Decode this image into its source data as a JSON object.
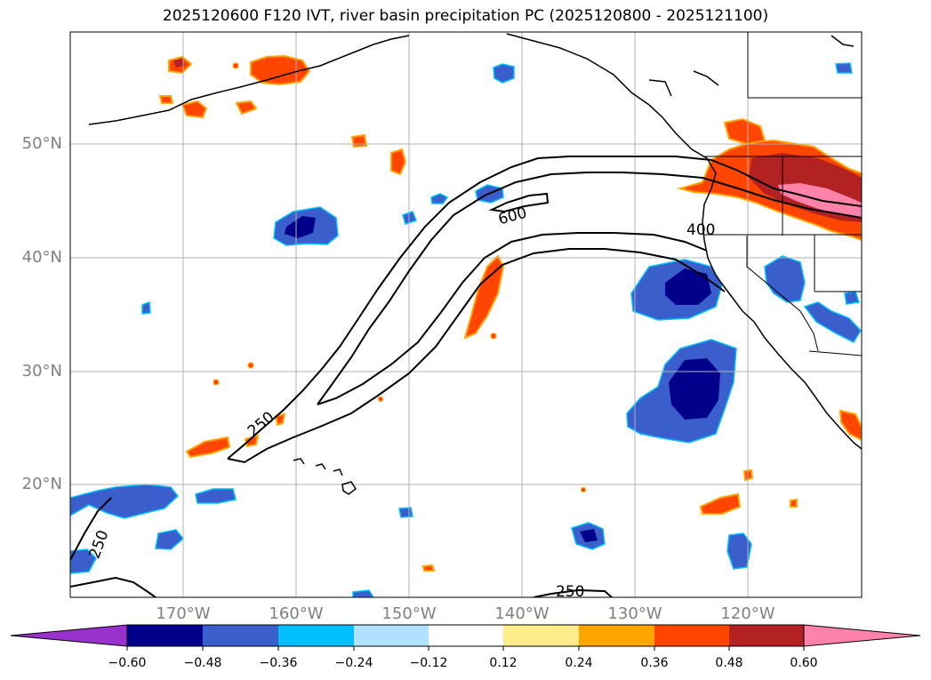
{
  "title": "2025120600 F120 IVT, river basin precipitation PC (2025120800 - 2025121100)",
  "lat_labels": [
    "50°N",
    "40°N",
    "30°N",
    "20°N"
  ],
  "lon_labels": [
    "170°W",
    "160°W",
    "150°W",
    "140°W",
    "130°W",
    "120°W"
  ],
  "ivt_contours": {
    "levels": [
      250,
      400,
      600
    ],
    "inline_labels": [
      "250",
      "600",
      "400",
      "250",
      "250"
    ]
  },
  "colorbar": {
    "tick_labels": [
      "−0.60",
      "−0.48",
      "−0.36",
      "−0.24",
      "−0.12",
      "0.12",
      "0.24",
      "0.36",
      "0.48",
      "0.60"
    ],
    "colors": [
      "#9932cc",
      "#00008b",
      "#3a5fcd",
      "#00bfff",
      "#b0e2ff",
      "#ffffff",
      "#ffec8b",
      "#ffa500",
      "#ff4500",
      "#b22222",
      "#ff82ab"
    ]
  }
}
